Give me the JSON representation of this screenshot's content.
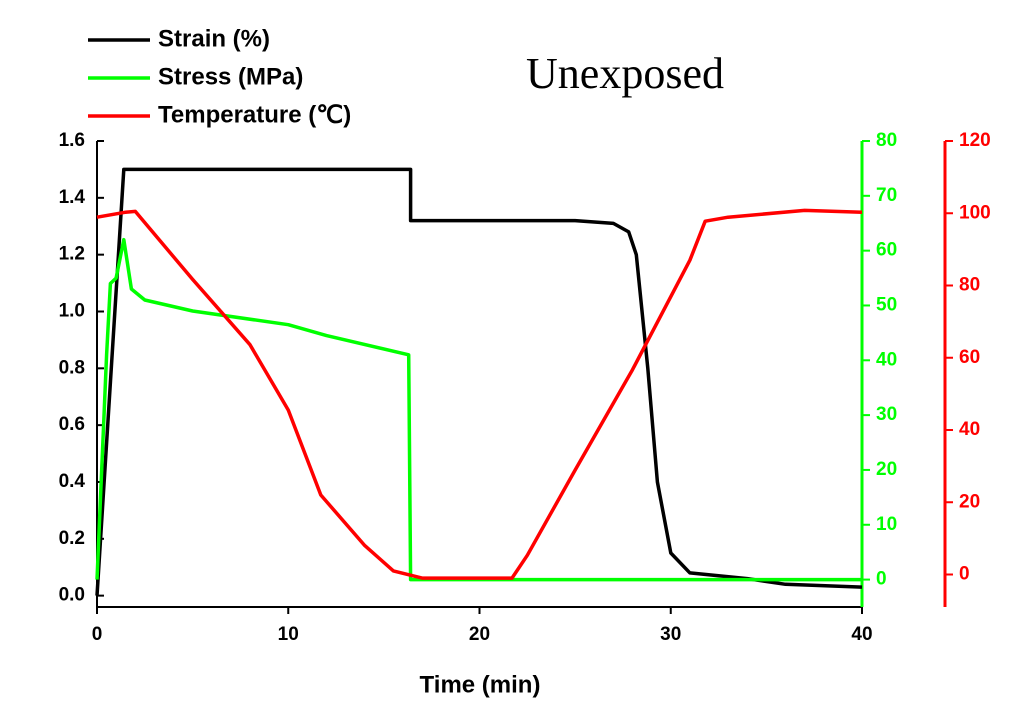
{
  "chart_data": {
    "type": "line",
    "title": "Unexposed",
    "x_label": "Time (min)",
    "xlim": [
      0,
      40
    ],
    "xticks": [
      0,
      10,
      20,
      30,
      40
    ],
    "ylim": [
      -0.04,
      1.6
    ],
    "yticks": [
      {
        "value": 0,
        "label": "0.0"
      },
      {
        "value": 0.2,
        "label": "0.2"
      },
      {
        "value": 0.4,
        "label": "0.4"
      },
      {
        "value": 0.6,
        "label": "0.6"
      },
      {
        "value": 0.8,
        "label": "0.8"
      },
      {
        "value": 1,
        "label": "1.0"
      },
      {
        "value": 1.2,
        "label": "1.2"
      },
      {
        "value": 1.4,
        "label": "1.4"
      },
      {
        "value": 1.6,
        "label": "1.6"
      }
    ],
    "y2lim": [
      -5,
      80
    ],
    "y2ticks": [
      0,
      10,
      20,
      30,
      40,
      50,
      60,
      70,
      80
    ],
    "y2color": "#00ff00",
    "y3lim": [
      -9,
      120
    ],
    "y3ticks": [
      0,
      20,
      40,
      60,
      80,
      100,
      120
    ],
    "y3color": "#ff0000",
    "series": [
      {
        "name": "Strain (%)",
        "color": "#000000",
        "axis": "y",
        "x": [
          0,
          1.4,
          16.4,
          16.4,
          25,
          27,
          27.8,
          28.2,
          28.8,
          29.3,
          30,
          31,
          34,
          36,
          40
        ],
        "values": [
          0,
          1.5,
          1.5,
          1.32,
          1.32,
          1.31,
          1.28,
          1.2,
          0.8,
          0.4,
          0.15,
          0.08,
          0.06,
          0.04,
          0.03
        ]
      },
      {
        "name": "Stress (MPa)",
        "color": "#00ff00",
        "axis": "y2",
        "x": [
          0,
          0.5,
          0.7,
          1.0,
          1.4,
          1.8,
          2.5,
          5,
          10,
          12,
          16.3,
          16.4,
          40
        ],
        "values": [
          0,
          41,
          54,
          55,
          62,
          53,
          51,
          49,
          46.5,
          44.5,
          41,
          0,
          0
        ]
      },
      {
        "name": "Temperature (℃)",
        "color": "#ff0000",
        "axis": "y3",
        "x": [
          0,
          1.5,
          2,
          5,
          8,
          10,
          11.7,
          14,
          15.5,
          17,
          21.7,
          22.5,
          25,
          28,
          31,
          31.8,
          33,
          37,
          40
        ],
        "values": [
          98.9,
          100.3,
          100.5,
          81.7,
          63.6,
          45.5,
          22,
          8,
          1,
          -1,
          -1,
          5.3,
          28.9,
          56.7,
          87,
          97.8,
          98.9,
          100.8,
          100.3
        ]
      }
    ]
  }
}
